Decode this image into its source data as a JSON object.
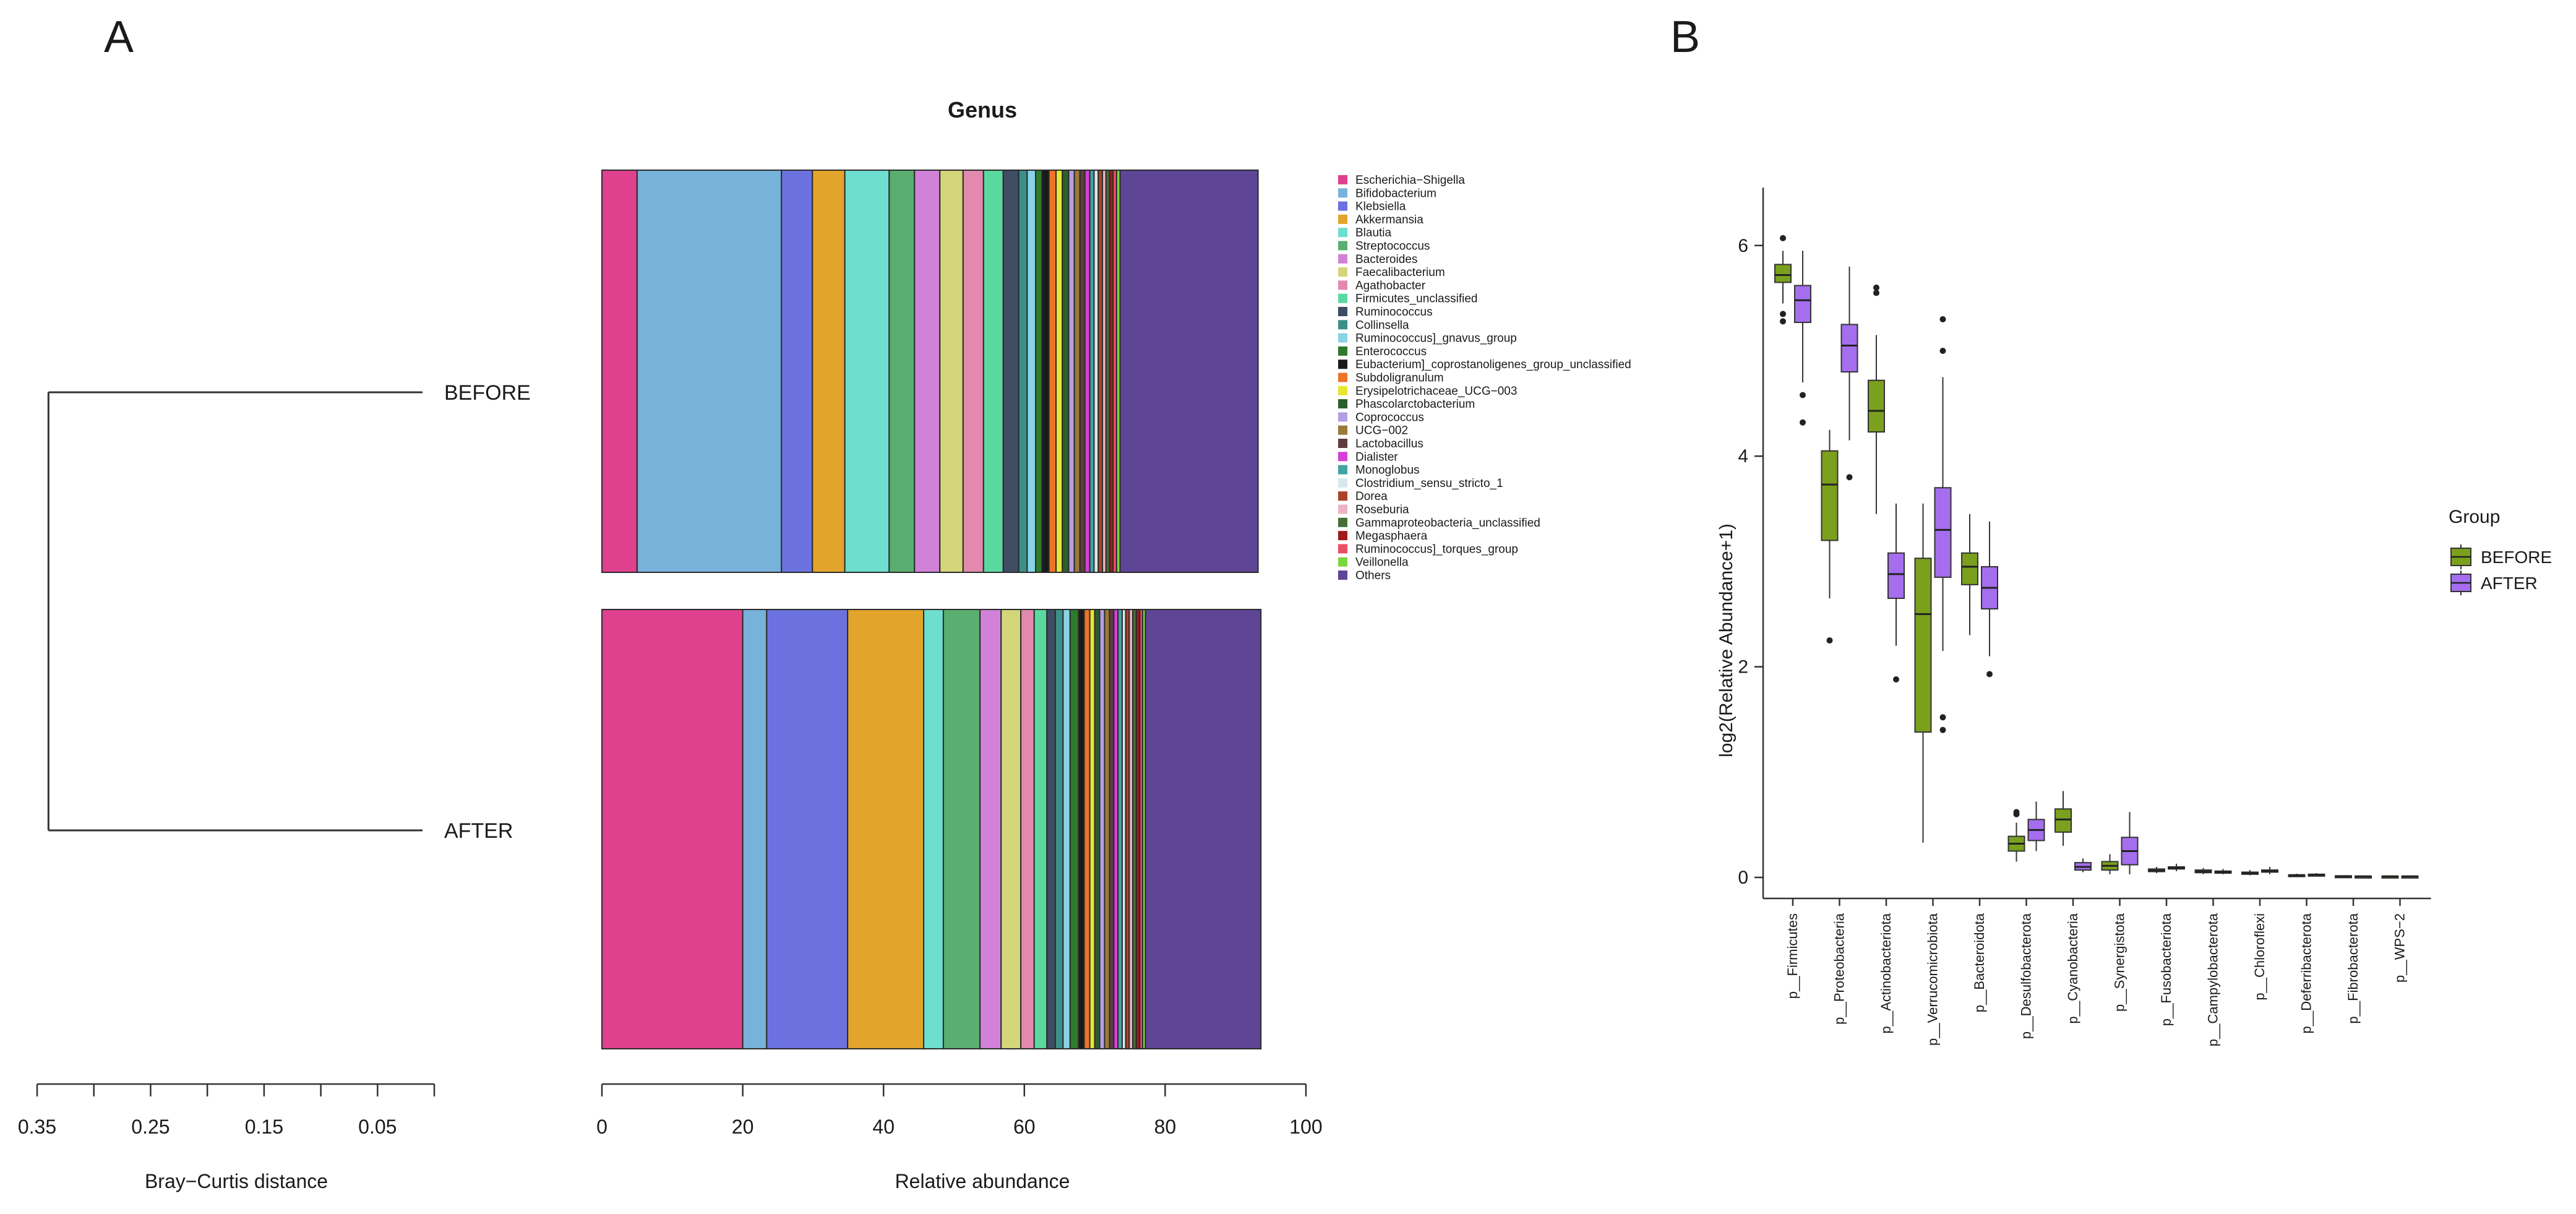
{
  "panels": {
    "a": {
      "letter": "A"
    },
    "b": {
      "letter": "B"
    }
  },
  "chart_data": [
    {
      "type": "dendrogram",
      "name": "panel-a-dendrogram",
      "leaves": [
        "BEFORE",
        "AFTER"
      ],
      "merge_height": 0.34,
      "xlabel": "Bray−Curtis distance",
      "xlim": [
        0.35,
        0.0
      ],
      "x_ticks": [
        0.35,
        0.3,
        0.25,
        0.2,
        0.15,
        0.1,
        0.05,
        0.0
      ],
      "x_tick_labels": [
        "0.35",
        "",
        "0.25",
        "",
        "0.15",
        "",
        "0.05",
        ""
      ]
    },
    {
      "type": "bar",
      "orientation": "horizontal-stacked",
      "name": "panel-a-genus-composition",
      "title": "Genus",
      "xlabel": "Relative abundance",
      "xlim": [
        0,
        100
      ],
      "x_ticks": [
        0,
        20,
        40,
        60,
        80,
        100
      ],
      "categories": [
        "BEFORE",
        "AFTER"
      ],
      "series": [
        {
          "name": "Escherichia−Shigella",
          "color": "#e0418f",
          "values": [
            5.0,
            20.0
          ]
        },
        {
          "name": "Bifidobacterium",
          "color": "#77b2da",
          "values": [
            20.5,
            3.4
          ]
        },
        {
          "name": "Klebsiella",
          "color": "#6b72df",
          "values": [
            4.4,
            11.5
          ]
        },
        {
          "name": "Akkermansia",
          "color": "#e3a42c",
          "values": [
            4.6,
            10.8
          ]
        },
        {
          "name": "Blautia",
          "color": "#6ddecf",
          "values": [
            6.3,
            2.8
          ]
        },
        {
          "name": "Streptococcus",
          "color": "#5aae6f",
          "values": [
            3.6,
            5.2
          ]
        },
        {
          "name": "Bacteroides",
          "color": "#d182d8",
          "values": [
            3.6,
            3.0
          ]
        },
        {
          "name": "Faecalibacterium",
          "color": "#d4d67a",
          "values": [
            3.3,
            2.8
          ]
        },
        {
          "name": "Agathobacter",
          "color": "#e28aae",
          "values": [
            2.9,
            1.9
          ]
        },
        {
          "name": "Firmicutes_unclassified",
          "color": "#59d9a0",
          "values": [
            2.8,
            1.8
          ]
        },
        {
          "name": "Ruminococcus",
          "color": "#3e4d63",
          "values": [
            2.2,
            1.2
          ]
        },
        {
          "name": "Collinsella",
          "color": "#3c8f88",
          "values": [
            1.2,
            1.1
          ]
        },
        {
          "name": "Ruminococcus]_gnavus_group",
          "color": "#88d3e6",
          "values": [
            1.2,
            1.0
          ]
        },
        {
          "name": "Enterococcus",
          "color": "#2e7a2e",
          "values": [
            0.9,
            1.2
          ]
        },
        {
          "name": "Eubacterium]_coprostanoligenes_group_unclassified",
          "color": "#1a1a1a",
          "values": [
            1.0,
            0.8
          ]
        },
        {
          "name": "Subdoligranulum",
          "color": "#ec7428",
          "values": [
            1.0,
            0.8
          ]
        },
        {
          "name": "Erysipelotrichaceae_UCG−003",
          "color": "#e6e632",
          "values": [
            0.9,
            0.7
          ]
        },
        {
          "name": "Phascolarctobacterium",
          "color": "#2d5e2d",
          "values": [
            0.9,
            0.7
          ]
        },
        {
          "name": "Coprococcus",
          "color": "#b3a0e3",
          "values": [
            0.8,
            0.7
          ]
        },
        {
          "name": "UCG−002",
          "color": "#9b7a38",
          "values": [
            0.8,
            0.7
          ]
        },
        {
          "name": "Lactobacillus",
          "color": "#5e3e3e",
          "values": [
            0.7,
            0.6
          ]
        },
        {
          "name": "Dialister",
          "color": "#d63fd6",
          "values": [
            0.7,
            0.6
          ]
        },
        {
          "name": "Monoglobus",
          "color": "#41a3a3",
          "values": [
            0.6,
            0.6
          ]
        },
        {
          "name": "Clostridium_sensu_stricto_1",
          "color": "#d8e8ee",
          "values": [
            0.6,
            0.5
          ]
        },
        {
          "name": "Dorea",
          "color": "#a8442a",
          "values": [
            0.6,
            0.5
          ]
        },
        {
          "name": "Roseburia",
          "color": "#ecb4c2",
          "values": [
            0.5,
            0.5
          ]
        },
        {
          "name": "Gammaproteobacteria_unclassified",
          "color": "#466e35",
          "values": [
            0.5,
            0.5
          ]
        },
        {
          "name": "Megasphaera",
          "color": "#9e1b1b",
          "values": [
            0.5,
            0.5
          ]
        },
        {
          "name": "Ruminococcus]_torques_group",
          "color": "#ec4e63",
          "values": [
            0.5,
            0.4
          ]
        },
        {
          "name": "Veillonella",
          "color": "#7bd63f",
          "values": [
            0.5,
            0.4
          ]
        },
        {
          "name": "Others",
          "color": "#5e4596",
          "values": [
            19.6,
            16.4
          ]
        }
      ]
    },
    {
      "type": "boxplot",
      "name": "panel-b-phylum-boxplot",
      "ylabel": "log2(Relative Abundance+1)",
      "ylim": [
        -0.2,
        6.55
      ],
      "y_ticks": [
        0,
        2,
        4,
        6
      ],
      "categories": [
        "p__Firmicutes",
        "p__Proteobacteria",
        "p__Actinobacteriota",
        "p__Verrucomicrobiota",
        "p__Bacteroidota",
        "p__Desulfobacterota",
        "p__Cyanobacteria",
        "p__Synergistota",
        "p__Fusobacteriota",
        "p__Campylobacterota",
        "p__Chloroflexi",
        "p__Deferribacterota",
        "p__Fibrobacterota",
        "p__WPS−2"
      ],
      "legend": {
        "title": "Group",
        "position": "right"
      },
      "series": [
        {
          "name": "BEFORE",
          "color": "#7aa01e",
          "boxes": [
            {
              "min": 5.45,
              "q1": 5.65,
              "median": 5.72,
              "q3": 5.82,
              "max": 5.95,
              "outliers": [
                6.07,
                5.35,
                5.28
              ]
            },
            {
              "min": 2.65,
              "q1": 3.2,
              "median": 3.73,
              "q3": 4.05,
              "max": 4.25,
              "outliers": [
                2.25
              ]
            },
            {
              "min": 3.45,
              "q1": 4.23,
              "median": 4.43,
              "q3": 4.72,
              "max": 5.15,
              "outliers": [
                5.6,
                5.55
              ]
            },
            {
              "min": 0.33,
              "q1": 1.38,
              "median": 2.5,
              "q3": 3.03,
              "max": 3.55,
              "outliers": []
            },
            {
              "min": 2.3,
              "q1": 2.78,
              "median": 2.95,
              "q3": 3.08,
              "max": 3.45,
              "outliers": []
            },
            {
              "min": 0.15,
              "q1": 0.25,
              "median": 0.32,
              "q3": 0.39,
              "max": 0.52,
              "outliers": [
                0.62,
                0.6
              ]
            },
            {
              "min": 0.3,
              "q1": 0.43,
              "median": 0.55,
              "q3": 0.65,
              "max": 0.82,
              "outliers": []
            },
            {
              "min": 0.03,
              "q1": 0.07,
              "median": 0.11,
              "q3": 0.15,
              "max": 0.22,
              "outliers": []
            },
            {
              "min": 0.04,
              "q1": 0.055,
              "median": 0.065,
              "q3": 0.08,
              "max": 0.1,
              "outliers": []
            },
            {
              "min": 0.03,
              "q1": 0.045,
              "median": 0.055,
              "q3": 0.07,
              "max": 0.09,
              "outliers": []
            },
            {
              "min": 0.02,
              "q1": 0.03,
              "median": 0.04,
              "q3": 0.05,
              "max": 0.07,
              "outliers": []
            },
            {
              "min": 0.01,
              "q1": 0.015,
              "median": 0.02,
              "q3": 0.025,
              "max": 0.035,
              "outliers": []
            },
            {
              "min": 0.005,
              "q1": 0.01,
              "median": 0.012,
              "q3": 0.015,
              "max": 0.02,
              "outliers": []
            },
            {
              "min": 0.005,
              "q1": 0.008,
              "median": 0.01,
              "q3": 0.012,
              "max": 0.018,
              "outliers": []
            }
          ]
        },
        {
          "name": "AFTER",
          "color": "#a56eef",
          "boxes": [
            {
              "min": 4.7,
              "q1": 5.27,
              "median": 5.48,
              "q3": 5.62,
              "max": 5.95,
              "outliers": [
                4.58,
                4.32
              ]
            },
            {
              "min": 4.15,
              "q1": 4.8,
              "median": 5.05,
              "q3": 5.25,
              "max": 5.8,
              "outliers": [
                3.8
              ]
            },
            {
              "min": 2.2,
              "q1": 2.65,
              "median": 2.88,
              "q3": 3.08,
              "max": 3.55,
              "outliers": [
                1.88
              ]
            },
            {
              "min": 2.15,
              "q1": 2.85,
              "median": 3.3,
              "q3": 3.7,
              "max": 4.75,
              "outliers": [
                5.3,
                5.0,
                1.52,
                1.4
              ]
            },
            {
              "min": 2.1,
              "q1": 2.55,
              "median": 2.75,
              "q3": 2.95,
              "max": 3.38,
              "outliers": [
                1.93
              ]
            },
            {
              "min": 0.25,
              "q1": 0.35,
              "median": 0.45,
              "q3": 0.55,
              "max": 0.72,
              "outliers": []
            },
            {
              "min": 0.05,
              "q1": 0.07,
              "median": 0.1,
              "q3": 0.14,
              "max": 0.18,
              "outliers": []
            },
            {
              "min": 0.03,
              "q1": 0.12,
              "median": 0.25,
              "q3": 0.38,
              "max": 0.62,
              "outliers": []
            },
            {
              "min": 0.06,
              "q1": 0.08,
              "median": 0.09,
              "q3": 0.1,
              "max": 0.13,
              "outliers": []
            },
            {
              "min": 0.03,
              "q1": 0.04,
              "median": 0.05,
              "q3": 0.06,
              "max": 0.08,
              "outliers": []
            },
            {
              "min": 0.03,
              "q1": 0.05,
              "median": 0.06,
              "q3": 0.07,
              "max": 0.1,
              "outliers": []
            },
            {
              "min": 0.01,
              "q1": 0.02,
              "median": 0.025,
              "q3": 0.03,
              "max": 0.04,
              "outliers": []
            },
            {
              "min": 0.005,
              "q1": 0.008,
              "median": 0.01,
              "q3": 0.012,
              "max": 0.015,
              "outliers": []
            },
            {
              "min": 0.005,
              "q1": 0.008,
              "median": 0.01,
              "q3": 0.012,
              "max": 0.015,
              "outliers": []
            }
          ]
        }
      ]
    }
  ]
}
